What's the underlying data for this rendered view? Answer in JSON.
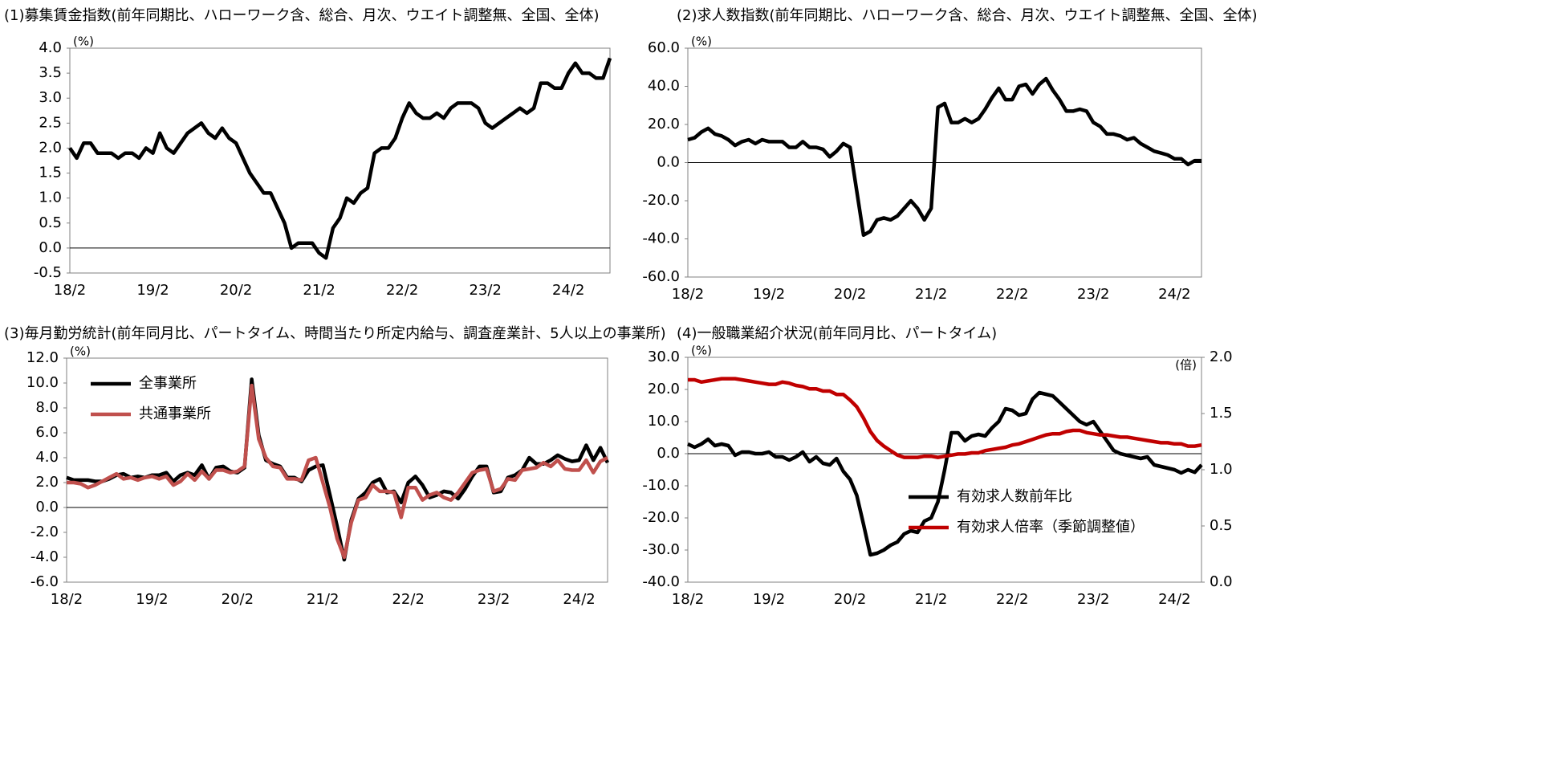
{
  "chart_data": [
    {
      "type": "line",
      "title": "(1)募集賃金指数(前年同期比、ハローワーク含、総合、月次、ウエイト調整無、全国、全体)",
      "y_unit": "(%)",
      "categories": [
        "18/2",
        null,
        null,
        null,
        null,
        null,
        null,
        null,
        null,
        null,
        null,
        null,
        "19/2",
        null,
        null,
        null,
        null,
        null,
        null,
        null,
        null,
        null,
        null,
        null,
        "20/2",
        null,
        null,
        null,
        null,
        null,
        null,
        null,
        null,
        null,
        null,
        null,
        "21/2",
        null,
        null,
        null,
        null,
        null,
        null,
        null,
        null,
        null,
        null,
        null,
        "22/2",
        null,
        null,
        null,
        null,
        null,
        null,
        null,
        null,
        null,
        null,
        null,
        "23/2",
        null,
        null,
        null,
        null,
        null,
        null,
        null,
        null,
        null,
        null,
        null,
        "24/2",
        null,
        null,
        null,
        null,
        null,
        null
      ],
      "values": [
        2.0,
        1.8,
        2.1,
        2.1,
        1.9,
        1.9,
        1.9,
        1.8,
        1.9,
        1.9,
        1.8,
        2.0,
        1.9,
        2.3,
        2.0,
        1.9,
        2.1,
        2.3,
        2.4,
        2.5,
        2.3,
        2.2,
        2.4,
        2.2,
        2.1,
        1.8,
        1.5,
        1.3,
        1.1,
        1.1,
        0.8,
        0.5,
        0.0,
        0.1,
        0.1,
        0.1,
        -0.1,
        -0.2,
        0.4,
        0.6,
        1.0,
        0.9,
        1.1,
        1.2,
        1.9,
        2.0,
        2.0,
        2.2,
        2.6,
        2.9,
        2.7,
        2.6,
        2.6,
        2.7,
        2.6,
        2.8,
        2.9,
        2.9,
        2.9,
        2.8,
        2.5,
        2.4,
        2.5,
        2.6,
        2.7,
        2.8,
        2.7,
        2.8,
        3.3,
        3.3,
        3.2,
        3.2,
        3.5,
        3.7,
        3.5,
        3.5,
        3.4,
        3.4,
        3.8
      ],
      "color": "#000000",
      "ylim": [
        -0.5,
        4.0
      ],
      "yticks": [
        -0.5,
        {
          "value": 0,
          "label": "0.0"
        },
        0.5,
        {
          "value": 1,
          "label": "1.0"
        },
        1.5,
        {
          "value": 2,
          "label": "2.0"
        },
        2.5,
        {
          "value": 3,
          "label": "3.0"
        },
        3.5,
        {
          "value": 4,
          "label": "4.0"
        }
      ]
    },
    {
      "type": "line",
      "title": "(2)求人数指数(前年同期比、ハローワーク含、総合、月次、ウエイト調整無、全国、全体)",
      "y_unit": "(%)",
      "categories": [
        "18/2",
        null,
        null,
        null,
        null,
        null,
        null,
        null,
        null,
        null,
        null,
        null,
        "19/2",
        null,
        null,
        null,
        null,
        null,
        null,
        null,
        null,
        null,
        null,
        null,
        "20/2",
        null,
        null,
        null,
        null,
        null,
        null,
        null,
        null,
        null,
        null,
        null,
        "21/2",
        null,
        null,
        null,
        null,
        null,
        null,
        null,
        null,
        null,
        null,
        null,
        "22/2",
        null,
        null,
        null,
        null,
        null,
        null,
        null,
        null,
        null,
        null,
        null,
        "23/2",
        null,
        null,
        null,
        null,
        null,
        null,
        null,
        null,
        null,
        null,
        null,
        "24/2",
        null,
        null,
        null,
        null
      ],
      "values": [
        12,
        13,
        16,
        18,
        15,
        14,
        12,
        9,
        11,
        12,
        10,
        12,
        11,
        11,
        11,
        8,
        8,
        11,
        8,
        8,
        7,
        3,
        6,
        10,
        8,
        -15,
        -38,
        -36,
        -30,
        -29,
        -30,
        -28,
        -24,
        -20,
        -24,
        -30,
        -24,
        29,
        31,
        21,
        21,
        23,
        21,
        23,
        28,
        34,
        39,
        33,
        33,
        40,
        41,
        36,
        41,
        44,
        38,
        33,
        27,
        27,
        28,
        27,
        21,
        19,
        15,
        15,
        14,
        12,
        13,
        10,
        8,
        6,
        5,
        4,
        2,
        2,
        -1,
        1,
        1
      ],
      "color": "#000000",
      "ylim": [
        -60,
        60
      ],
      "yticks": [
        {
          "value": -60,
          "label": "-60.0"
        },
        {
          "value": -40,
          "label": "-40.0"
        },
        {
          "value": -20,
          "label": "-20.0"
        },
        {
          "value": 0,
          "label": "0.0"
        },
        {
          "value": 20,
          "label": "20.0"
        },
        {
          "value": 40,
          "label": "40.0"
        },
        {
          "value": 60,
          "label": "60.0"
        }
      ]
    },
    {
      "type": "line",
      "title": "(3)毎月勤労統計(前年同月比、パートタイム、時間当たり所定内給与、調査産業計、5人以上の事業所)",
      "y_unit": "(%)",
      "categories": [
        "18/2",
        null,
        null,
        null,
        null,
        null,
        null,
        null,
        null,
        null,
        null,
        null,
        "19/2",
        null,
        null,
        null,
        null,
        null,
        null,
        null,
        null,
        null,
        null,
        null,
        "20/2",
        null,
        null,
        null,
        null,
        null,
        null,
        null,
        null,
        null,
        null,
        null,
        "21/2",
        null,
        null,
        null,
        null,
        null,
        null,
        null,
        null,
        null,
        null,
        null,
        "22/2",
        null,
        null,
        null,
        null,
        null,
        null,
        null,
        null,
        null,
        null,
        null,
        "23/2",
        null,
        null,
        null,
        null,
        null,
        null,
        null,
        null,
        null,
        null,
        null,
        "24/2",
        null,
        null,
        null,
        null
      ],
      "series": [
        {
          "name": "全事業所",
          "color": "#000000",
          "values": [
            2.4,
            2.2,
            2.2,
            2.2,
            2.1,
            2.1,
            2.3,
            2.6,
            2.7,
            2.4,
            2.5,
            2.4,
            2.6,
            2.6,
            2.8,
            2.1,
            2.6,
            2.8,
            2.6,
            3.4,
            2.3,
            3.2,
            3.3,
            2.9,
            2.8,
            3.2,
            10.3,
            5.8,
            3.8,
            3.5,
            3.3,
            2.4,
            2.4,
            2.1,
            3.0,
            3.3,
            3.4,
            1.0,
            -1.5,
            -4.2,
            -1.0,
            0.7,
            1.2,
            2.0,
            2.3,
            1.2,
            1.3,
            0.4,
            2.0,
            2.5,
            1.8,
            0.8,
            1.0,
            1.3,
            1.2,
            0.7,
            1.5,
            2.5,
            3.3,
            3.3,
            1.2,
            1.3,
            2.4,
            2.6,
            3.0,
            4.0,
            3.5,
            3.5,
            3.8,
            4.2,
            3.9,
            3.7,
            3.8,
            5.0,
            3.8,
            4.8,
            3.6
          ]
        },
        {
          "name": "共通事業所",
          "color": "#c0504d",
          "values": [
            2.0,
            2.0,
            1.9,
            1.6,
            1.8,
            2.1,
            2.4,
            2.7,
            2.3,
            2.4,
            2.2,
            2.4,
            2.5,
            2.3,
            2.5,
            1.8,
            2.1,
            2.7,
            2.2,
            2.9,
            2.3,
            3.0,
            3.0,
            2.8,
            2.9,
            3.3,
            9.8,
            5.5,
            4.0,
            3.3,
            3.2,
            2.3,
            2.3,
            2.2,
            3.8,
            4.0,
            2.0,
            0.0,
            -2.5,
            -4.0,
            -1.2,
            0.6,
            0.8,
            1.8,
            1.3,
            1.3,
            1.2,
            -0.8,
            1.6,
            1.6,
            0.6,
            1.0,
            1.2,
            0.8,
            0.6,
            1.2,
            2.0,
            2.8,
            3.0,
            3.1,
            1.3,
            1.5,
            2.3,
            2.2,
            3.0,
            3.1,
            3.2,
            3.6,
            3.3,
            3.8,
            3.1,
            3.0,
            3.0,
            3.8,
            2.8,
            3.7,
            4.0
          ]
        }
      ],
      "legend": "upper left",
      "ylim": [
        -6,
        12
      ],
      "yticks": [
        {
          "value": -6,
          "label": "-6.0"
        },
        {
          "value": -4,
          "label": "-4.0"
        },
        {
          "value": -2,
          "label": "-2.0"
        },
        {
          "value": 0,
          "label": "0.0"
        },
        {
          "value": 2,
          "label": "2.0"
        },
        {
          "value": 4,
          "label": "4.0"
        },
        {
          "value": 6,
          "label": "6.0"
        },
        {
          "value": 8,
          "label": "8.0"
        },
        {
          "value": 10,
          "label": "10.0"
        },
        {
          "value": 12,
          "label": "12.0"
        }
      ]
    },
    {
      "type": "line",
      "title": "(4)一般職業紹介状況(前年同月比、パートタイム)",
      "y_unit": "(%)",
      "y2_unit": "(倍)",
      "categories": [
        "18/2",
        null,
        null,
        null,
        null,
        null,
        null,
        null,
        null,
        null,
        null,
        null,
        "19/2",
        null,
        null,
        null,
        null,
        null,
        null,
        null,
        null,
        null,
        null,
        null,
        "20/2",
        null,
        null,
        null,
        null,
        null,
        null,
        null,
        null,
        null,
        null,
        null,
        "21/2",
        null,
        null,
        null,
        null,
        null,
        null,
        null,
        null,
        null,
        null,
        null,
        "22/2",
        null,
        null,
        null,
        null,
        null,
        null,
        null,
        null,
        null,
        null,
        null,
        "23/2",
        null,
        null,
        null,
        null,
        null,
        null,
        null,
        null,
        null,
        null,
        null,
        "24/2",
        null,
        null,
        null,
        null
      ],
      "series": [
        {
          "name": "有効求人数前年比",
          "color": "#000000",
          "values": [
            3,
            2,
            3,
            4.5,
            2.5,
            3,
            2.5,
            -0.5,
            0.5,
            0.5,
            0,
            0,
            0.5,
            -1,
            -1,
            -2,
            -1,
            0.5,
            -2.5,
            -1,
            -3,
            -3.5,
            -1.5,
            -5.5,
            -8,
            -13,
            -22,
            -31.5,
            -31,
            -30,
            -28.5,
            -27.5,
            -25,
            -24,
            -24.5,
            -21,
            -20,
            -15,
            -5,
            6.5,
            6.5,
            4,
            5.5,
            6,
            5.5,
            8,
            10,
            14,
            13.5,
            12,
            12.5,
            17,
            19,
            18.5,
            18,
            16,
            14,
            12,
            10,
            9,
            10,
            7,
            4,
            1,
            0,
            -0.5,
            -1,
            -1.5,
            -1,
            -3.5,
            -4,
            -4.5,
            -5,
            -6,
            -5,
            -5.8,
            -3.5
          ]
        },
        {
          "name": "有効求人倍率（季節調整値）",
          "color": "#c00000",
          "axis": "y2",
          "values": [
            1.8,
            1.8,
            1.78,
            1.79,
            1.8,
            1.81,
            1.81,
            1.81,
            1.8,
            1.79,
            1.78,
            1.77,
            1.76,
            1.76,
            1.78,
            1.77,
            1.75,
            1.74,
            1.72,
            1.72,
            1.7,
            1.7,
            1.67,
            1.67,
            1.62,
            1.56,
            1.46,
            1.34,
            1.26,
            1.21,
            1.17,
            1.13,
            1.11,
            1.11,
            1.11,
            1.12,
            1.12,
            1.11,
            1.12,
            1.13,
            1.14,
            1.14,
            1.15,
            1.15,
            1.17,
            1.18,
            1.19,
            1.2,
            1.22,
            1.23,
            1.25,
            1.27,
            1.29,
            1.31,
            1.32,
            1.32,
            1.34,
            1.35,
            1.35,
            1.33,
            1.32,
            1.31,
            1.31,
            1.3,
            1.29,
            1.29,
            1.28,
            1.27,
            1.26,
            1.25,
            1.24,
            1.24,
            1.23,
            1.23,
            1.21,
            1.21,
            1.22
          ]
        }
      ],
      "legend": "lower right",
      "ylim": [
        -40,
        30
      ],
      "yticks": [
        {
          "value": -40,
          "label": "-40.0"
        },
        {
          "value": -30,
          "label": "-30.0"
        },
        {
          "value": -20,
          "label": "-20.0"
        },
        {
          "value": -10,
          "label": "-10.0"
        },
        {
          "value": 0,
          "label": "0.0"
        },
        {
          "value": 10,
          "label": "10.0"
        },
        {
          "value": 20,
          "label": "20.0"
        },
        {
          "value": 30,
          "label": "30.0"
        }
      ],
      "y2lim": [
        0,
        2.0
      ],
      "y2ticks": [
        {
          "value": 0,
          "label": "0.0"
        },
        0.5,
        {
          "value": 1,
          "label": "1.0"
        },
        1.5,
        {
          "value": 2,
          "label": "2.0"
        }
      ]
    }
  ]
}
